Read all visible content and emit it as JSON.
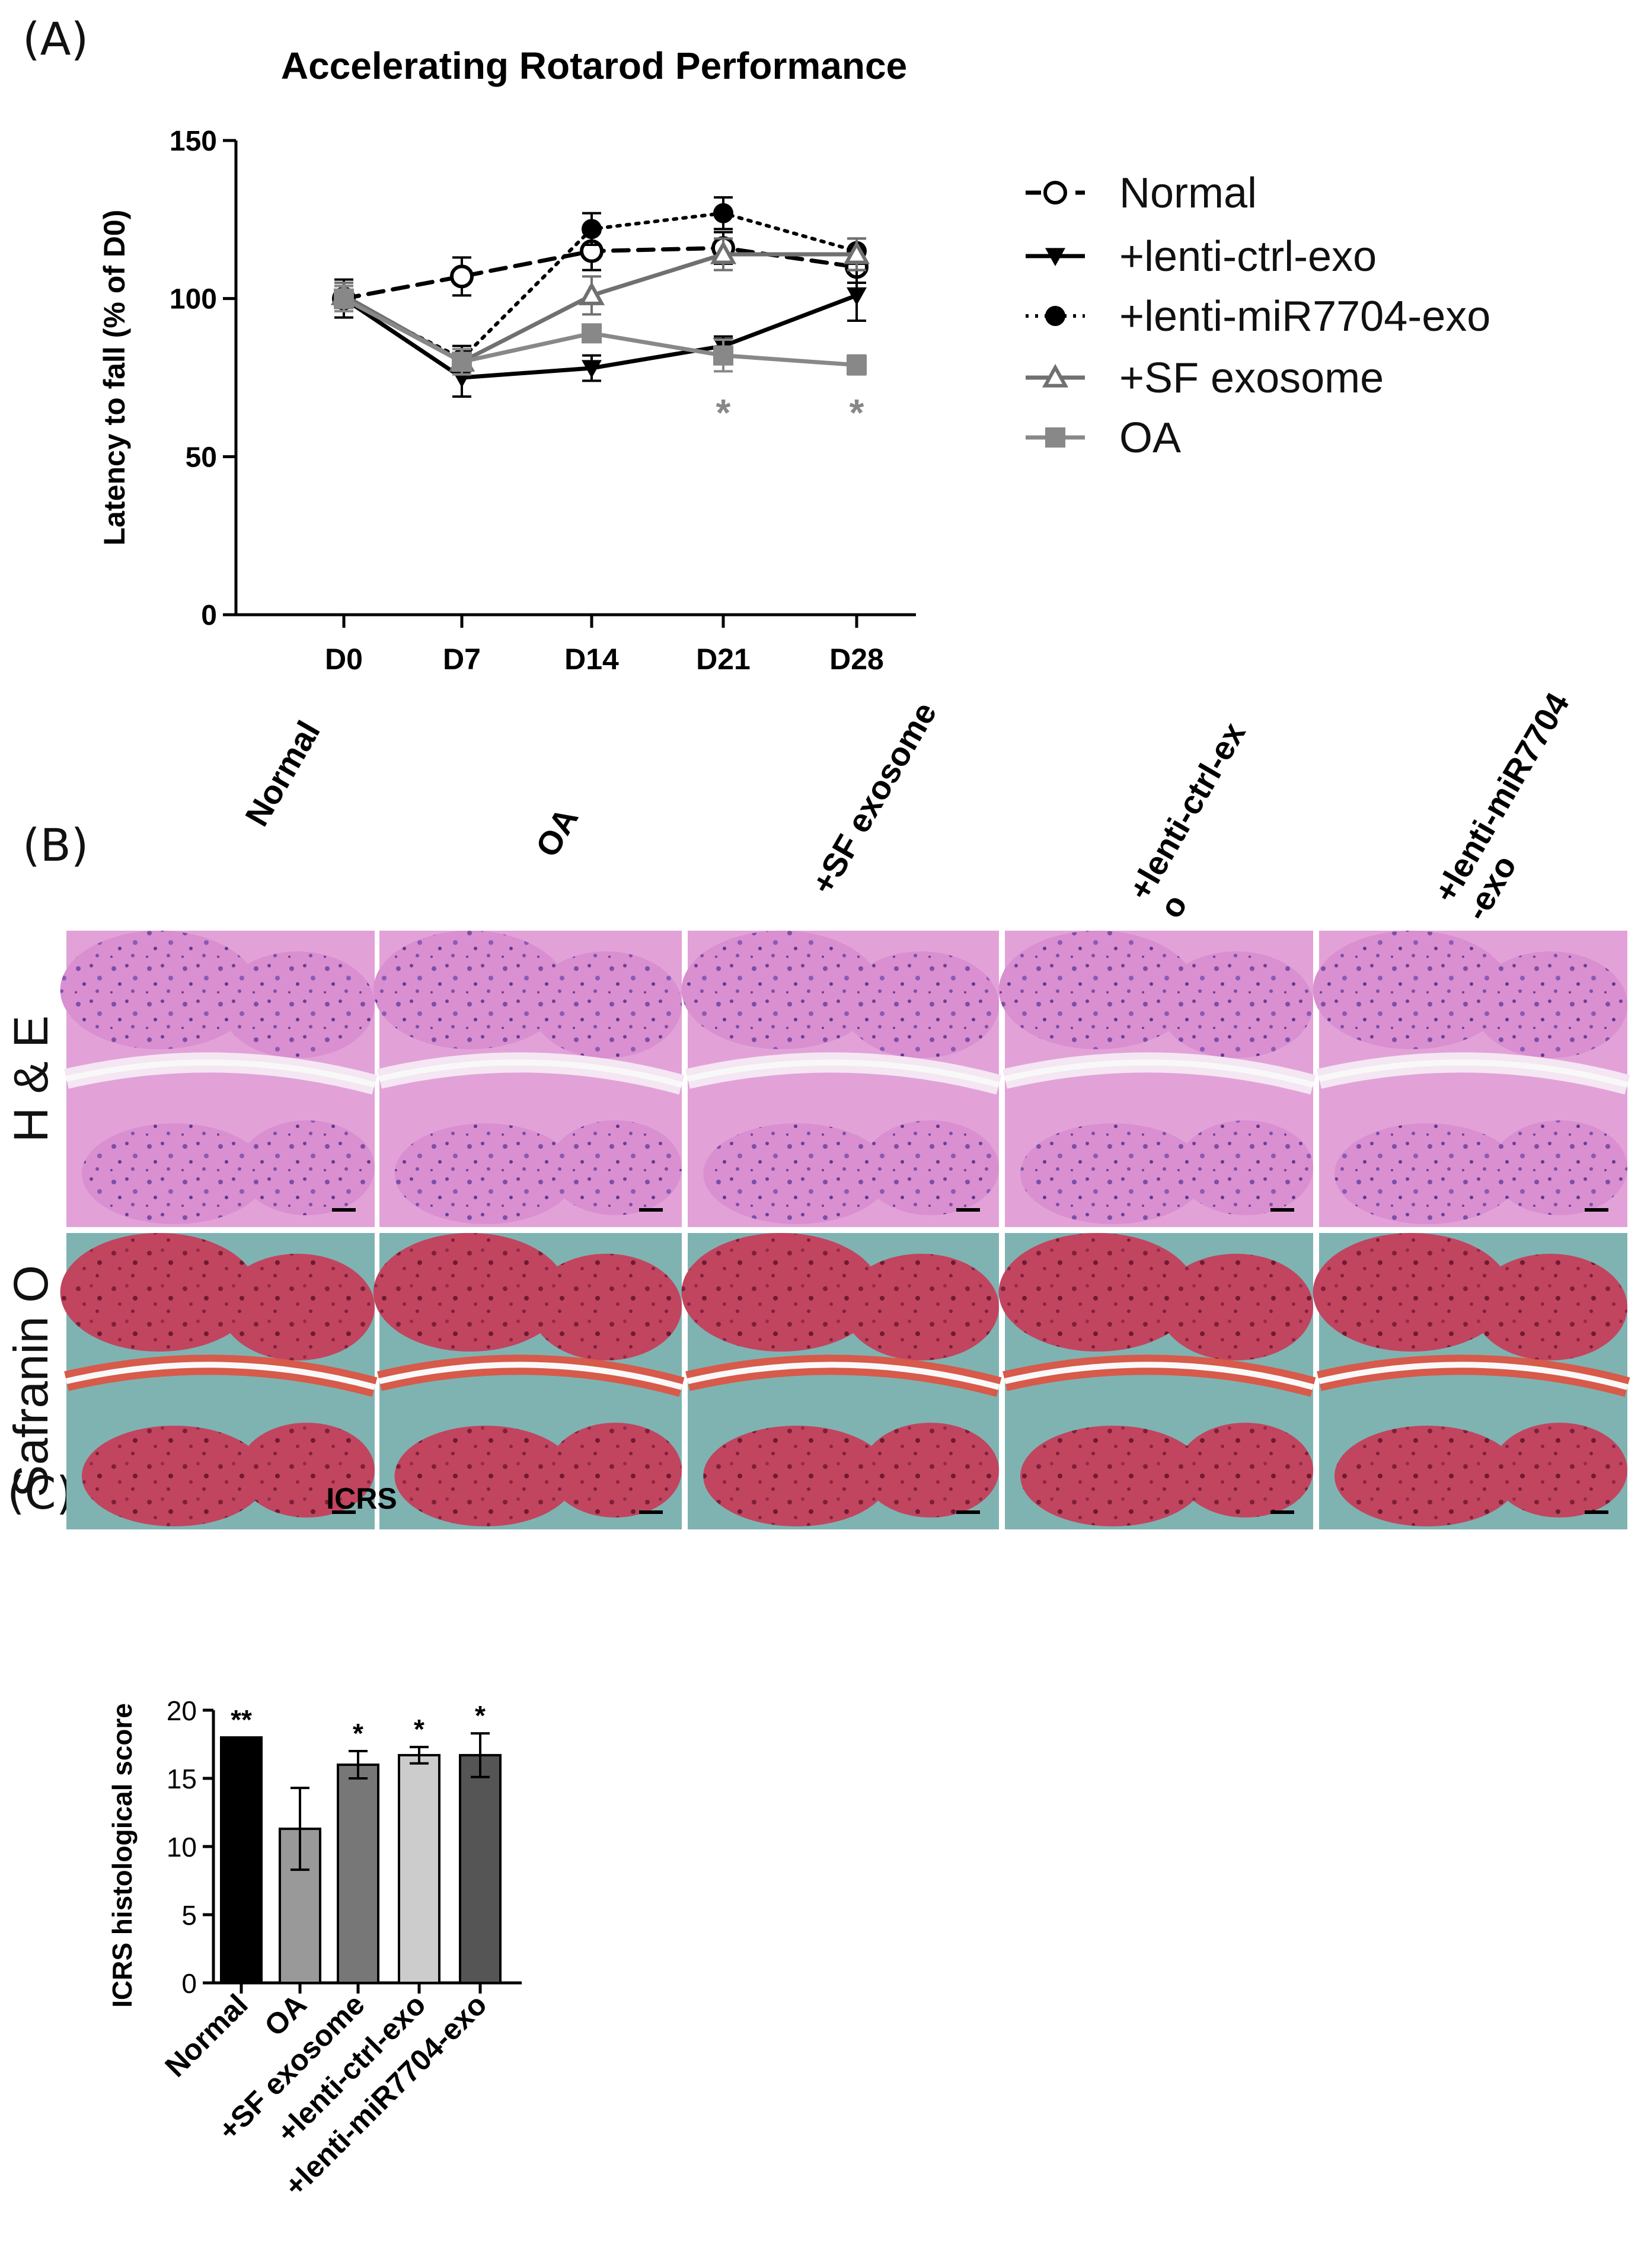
{
  "panel_labels": {
    "a": "(A)",
    "b": "(B)",
    "c": "(C)"
  },
  "chart_data": [
    {
      "type": "line",
      "title": "Accelerating Rotarod Performance",
      "xlabel": "",
      "ylabel": "Latency to fall (% of D0)",
      "categories": [
        "D0",
        "D7",
        "D14",
        "D21",
        "D28"
      ],
      "ylim": [
        0,
        150
      ],
      "yticks": [
        "0",
        "50",
        "100",
        "150"
      ],
      "grid": false,
      "legend": "right",
      "series": [
        {
          "name": "Normal",
          "values": [
            100,
            107,
            115,
            116,
            110
          ],
          "errors": [
            4,
            6,
            6,
            5,
            5
          ],
          "marker": "open-circle",
          "line": "dashed",
          "color": "#000000"
        },
        {
          "name": "+lenti-ctrl-exo",
          "values": [
            100,
            75,
            78,
            85,
            101
          ],
          "errors": [
            6,
            6,
            4,
            3,
            8
          ],
          "marker": "down-triangle",
          "line": "solid",
          "color": "#000000"
        },
        {
          "name": "+lenti-miR7704-exo",
          "values": [
            100,
            81,
            122,
            127,
            115
          ],
          "errors": [
            4,
            4,
            5,
            5,
            4
          ],
          "marker": "filled-circle",
          "line": "dotted",
          "color": "#000000"
        },
        {
          "name": "+SF exosome",
          "values": [
            101,
            80,
            101,
            114,
            114
          ],
          "errors": [
            4,
            4,
            6,
            5,
            5
          ],
          "marker": "open-triangle",
          "line": "solid",
          "color": "#707070"
        },
        {
          "name": "OA",
          "values": [
            100,
            80,
            89,
            82,
            79
          ],
          "errors": [
            4,
            4,
            2,
            5,
            3
          ],
          "marker": "filled-square",
          "line": "solid",
          "color": "#888888"
        }
      ],
      "annotations": [
        {
          "category": "D21",
          "text": "*"
        },
        {
          "category": "D28",
          "text": "*"
        }
      ]
    },
    {
      "type": "bar",
      "title": "ICRS",
      "xlabel": "",
      "ylabel": "ICRS histological score",
      "categories": [
        "Normal",
        "OA",
        "+SF exosome",
        "+lenti-ctrl-exo",
        "+lenti-miR7704-exo"
      ],
      "values": [
        18,
        11.3,
        16,
        16.7,
        16.7
      ],
      "errors": [
        0,
        3,
        1,
        0.6,
        1.6
      ],
      "significance": [
        "**",
        "",
        "*",
        "*",
        "*"
      ],
      "colors": [
        "#000000",
        "#999999",
        "#777777",
        "#cccccc",
        "#555555"
      ],
      "ylim": [
        0,
        20
      ],
      "yticks": [
        "0",
        "5",
        "10",
        "15",
        "20"
      ],
      "grid": false
    }
  ],
  "histology": {
    "columns": [
      "Normal",
      "OA",
      "+SF exosome",
      "+lenti-ctrl-exo",
      "+lenti-miR7704-exo"
    ],
    "column_labels": [
      [
        "Normal"
      ],
      [
        "OA"
      ],
      [
        "+SF exosome"
      ],
      [
        "+lenti-ctrl-ex",
        "o"
      ],
      [
        "+lenti-miR7704",
        "-exo"
      ]
    ],
    "rows": [
      "H & E",
      "Safranin O"
    ]
  }
}
